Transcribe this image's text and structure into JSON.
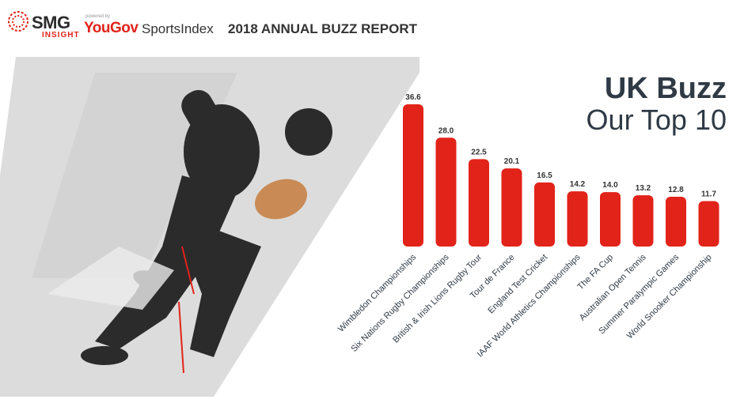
{
  "header": {
    "brand": "SMG",
    "brand_sub": "INSIGHT",
    "powered_by": "powered by",
    "partner": "YouGov",
    "product": "SportsIndex",
    "report_title": "2018 ANNUAL BUZZ REPORT"
  },
  "headline": {
    "line1": "UK Buzz",
    "line2": "Our Top 10"
  },
  "colors": {
    "bar": "#e2231a",
    "text": "#2f3a45",
    "panel": "#d8d8d8"
  },
  "chart_data": {
    "type": "bar",
    "categories": [
      "Wimbledon Championships",
      "Six Nations Rugby Championships",
      "British & Irish Lions Rugby Tour",
      "Tour de France",
      "England Test Cricket",
      "IAAF World Athletics Championships",
      "The FA Cup",
      "Australian Open Tennis",
      "Summer Paralympic Games",
      "World Snooker Championship"
    ],
    "values": [
      36.6,
      28.0,
      22.5,
      20.1,
      16.5,
      14.2,
      14.0,
      13.2,
      12.8,
      11.7
    ],
    "value_labels": [
      "36.6",
      "28.0",
      "22.5",
      "20.1",
      "16.5",
      "14.2",
      "14.0",
      "13.2",
      "12.8",
      "11.7"
    ],
    "ylim": [
      0,
      36.6
    ],
    "grid": false
  }
}
